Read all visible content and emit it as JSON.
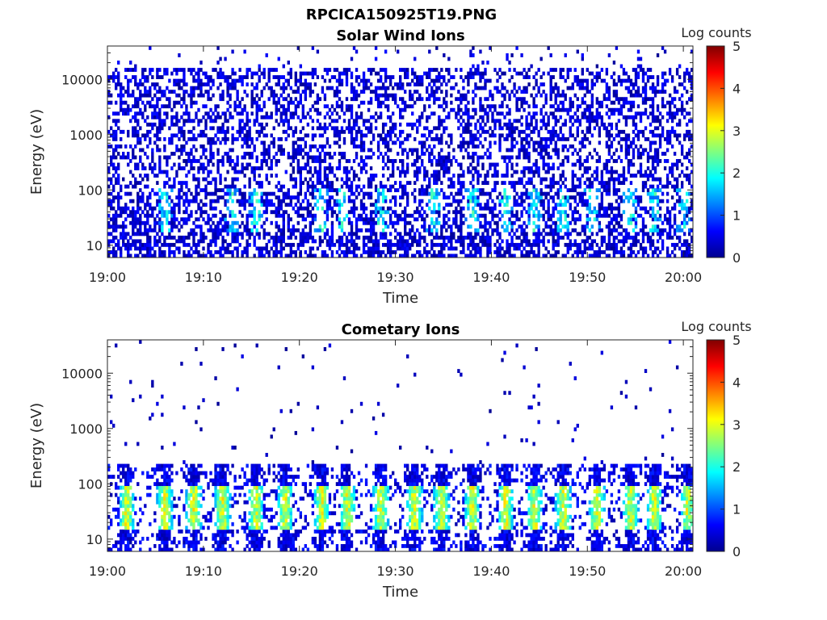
{
  "figure": {
    "filename": "RPCICA150925T19.PNG",
    "colormap": "jet"
  },
  "chart_data": [
    {
      "type": "heatmap",
      "title": "Solar Wind Ions",
      "xlabel": "Time",
      "ylabel": "Energy (eV)",
      "x_tick_labels": [
        "19:00",
        "19:10",
        "19:20",
        "19:30",
        "19:40",
        "19:50",
        "20:00"
      ],
      "x_range": [
        "19:00",
        "20:01"
      ],
      "y_tick_labels": [
        "10",
        "100",
        "1000",
        "10000"
      ],
      "y_range": [
        6,
        40000
      ],
      "y_scale": "log",
      "colorbar_label": "Log counts",
      "colorbar_ticks": [
        "0",
        "1",
        "2",
        "3",
        "4",
        "5"
      ],
      "color_range": [
        0,
        5
      ],
      "intensity_peaks_minutes": [
        6,
        13,
        15.5,
        22.3,
        24.5,
        28.5,
        34,
        38,
        41.5,
        44.5,
        47.5,
        50.5,
        54.5,
        57,
        60
      ]
    },
    {
      "type": "heatmap",
      "title": "Cometary Ions",
      "xlabel": "Time",
      "ylabel": "Energy (eV)",
      "x_tick_labels": [
        "19:00",
        "19:10",
        "19:20",
        "19:30",
        "19:40",
        "19:50",
        "20:00"
      ],
      "x_range": [
        "19:00",
        "20:01"
      ],
      "y_tick_labels": [
        "10",
        "100",
        "1000",
        "10000"
      ],
      "y_range": [
        6,
        40000
      ],
      "y_scale": "log",
      "colorbar_label": "Log counts",
      "colorbar_ticks": [
        "0",
        "1",
        "2",
        "3",
        "4",
        "5"
      ],
      "color_range": [
        0,
        5
      ],
      "intensity_peaks_minutes": [
        2,
        6,
        9,
        12,
        15.5,
        18.5,
        22.3,
        25,
        28.5,
        32,
        34.8,
        38,
        41.5,
        44.5,
        47.5,
        51,
        54.5,
        57,
        60.5
      ]
    }
  ]
}
